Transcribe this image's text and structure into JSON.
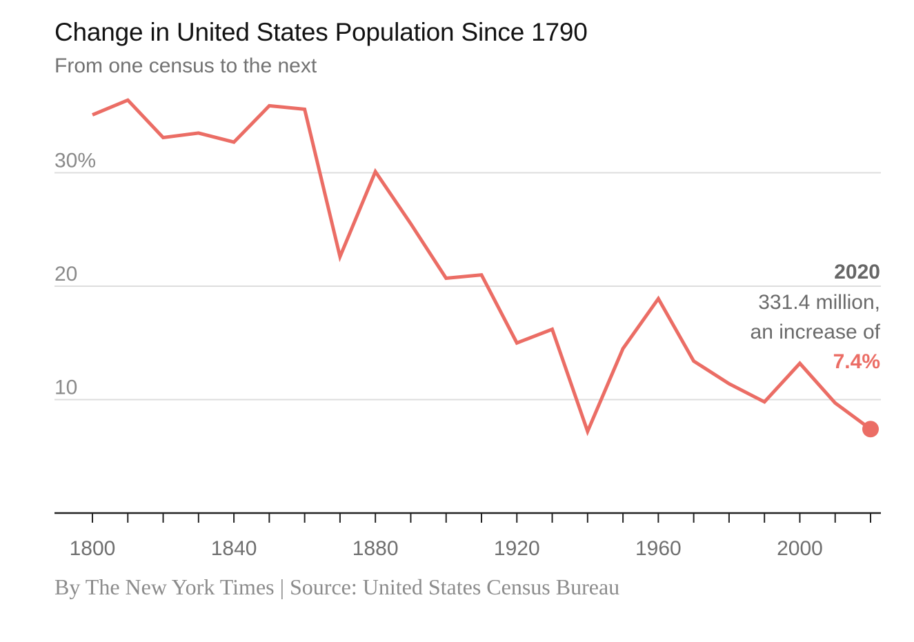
{
  "title": "Change in United States Population Since 1790",
  "subtitle": "From one census to the next",
  "source": "By The New York Times | Source: United States Census Bureau",
  "colors": {
    "line": "#eb6d65",
    "grid": "#dddddd",
    "axis": "#222222"
  },
  "annotation": {
    "year": "2020",
    "line1": "331.4 million,",
    "line2": "an increase of",
    "value": "7.4%"
  },
  "chart_data": {
    "type": "line",
    "title": "Change in United States Population Since 1790",
    "subtitle": "From one census to the next",
    "xlabel": "",
    "ylabel": "",
    "x": [
      1800,
      1810,
      1820,
      1830,
      1840,
      1850,
      1860,
      1870,
      1880,
      1890,
      1900,
      1910,
      1920,
      1930,
      1940,
      1950,
      1960,
      1970,
      1980,
      1990,
      2000,
      2010,
      2020
    ],
    "series": [
      {
        "values": [
          35.1,
          36.4,
          33.1,
          33.5,
          32.7,
          35.9,
          35.6,
          22.6,
          30.1,
          25.5,
          20.7,
          21.0,
          15.0,
          16.2,
          7.2,
          14.5,
          18.9,
          13.4,
          11.4,
          9.8,
          13.2,
          9.7,
          7.4
        ]
      }
    ],
    "xlim": [
      1790,
      2024
    ],
    "ylim": [
      0,
      38
    ],
    "yticks": [
      10,
      20,
      30
    ],
    "ytick_labels": [
      "10",
      "20",
      "30%"
    ],
    "xticks_labeled": [
      1800,
      1840,
      1880,
      1920,
      1960,
      2000
    ],
    "xticks_labels": [
      "1800",
      "1840",
      "1880",
      "1920",
      "1960",
      "2000"
    ],
    "xticks_minor": [
      1800,
      1810,
      1820,
      1830,
      1840,
      1850,
      1860,
      1870,
      1880,
      1890,
      1900,
      1910,
      1920,
      1930,
      1940,
      1950,
      1960,
      1970,
      1980,
      1990,
      2000,
      2010,
      2020
    ],
    "grid": true,
    "highlight_last_point": true
  }
}
